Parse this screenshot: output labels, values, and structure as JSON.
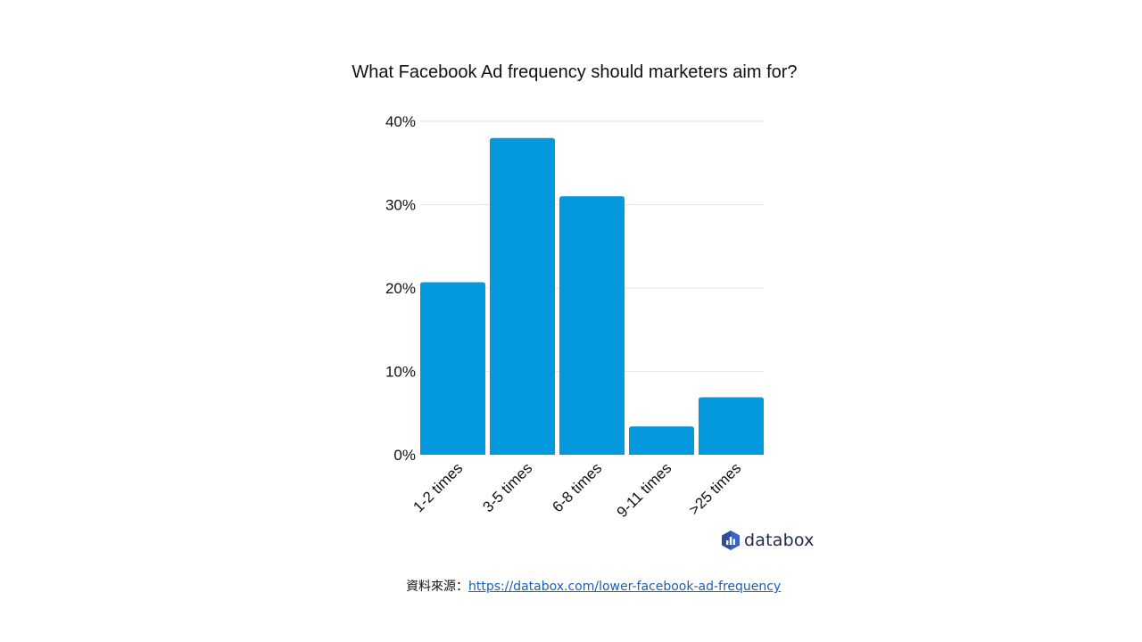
{
  "colors": {
    "bar": "#0499DD",
    "grid": "#e6e6e6",
    "text": "#111111",
    "link": "#1a5fb4"
  },
  "chart_data": {
    "type": "bar",
    "title": "What Facebook Ad frequency should marketers aim for?",
    "categories": [
      "1-2 times",
      "3-5 times",
      "6-8 times",
      "9-11 times",
      ">25 times"
    ],
    "values": [
      20.7,
      38.0,
      31.0,
      3.4,
      6.9
    ],
    "ylim": [
      0,
      40
    ],
    "yticks": [
      0,
      10,
      20,
      30,
      40
    ],
    "ytick_labels": [
      "0%",
      "10%",
      "20%",
      "30%",
      "40%"
    ],
    "xlabel": "",
    "ylabel": "",
    "grid": true
  },
  "branding": {
    "logo_name": "databox-logo-icon",
    "logo_text": "databox"
  },
  "source": {
    "label": "資料來源：",
    "url": "https://databox.com/lower-facebook-ad-frequency"
  }
}
